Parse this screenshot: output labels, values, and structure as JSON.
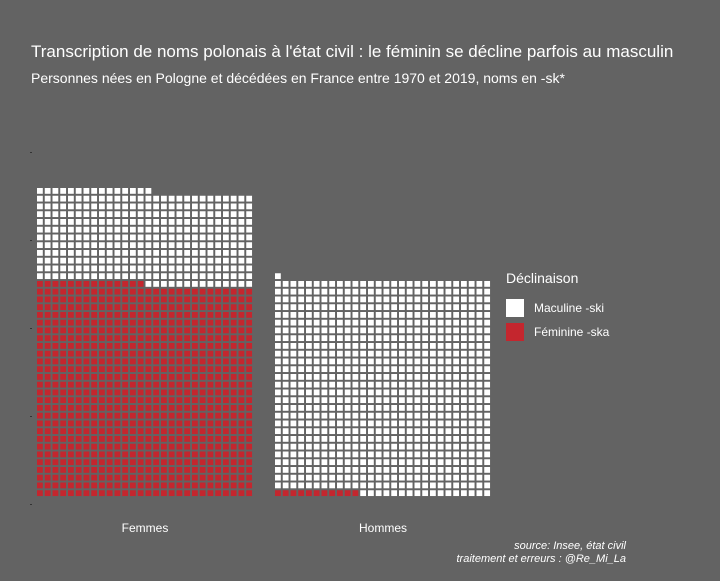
{
  "chart_data": {
    "type": "waffle",
    "title": "Transcription de noms polonais à l'état civil : le féminin se décline parfois au masculin",
    "subtitle": "Personnes nées en Pologne et décédées en France entre 1970 et 2019, noms en -sk*",
    "categories": [
      "Femmes",
      "Hommes"
    ],
    "series": [
      {
        "name": "Maculine -ski",
        "color": "#ffffff",
        "values": [
          337,
          774
        ]
      },
      {
        "name": "Féminine -ska",
        "color": "#c4262e",
        "values": [
          770,
          11
        ]
      }
    ],
    "legend": {
      "title": "Déclinaison",
      "position": "right"
    },
    "caption": [
      "source: Insee, état civil",
      "traitement et erreurs : @Re_Mi_La"
    ]
  }
}
